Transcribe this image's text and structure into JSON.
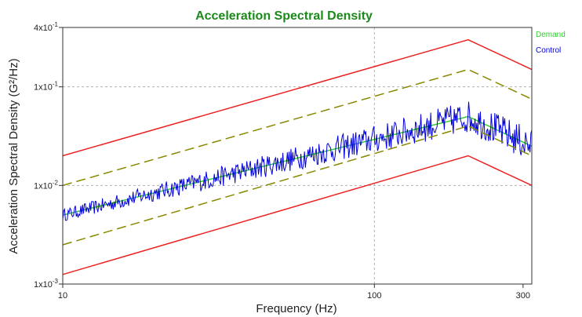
{
  "chart_data": {
    "type": "line",
    "title": "Acceleration Spectral Density",
    "xlabel": "Frequency (Hz)",
    "ylabel": "Acceleration Spectral Density (G²/Hz)",
    "xscale": "log",
    "yscale": "log",
    "xlim": [
      10,
      320
    ],
    "ylim": [
      0.001,
      0.4
    ],
    "grid": true,
    "legend_position": "top-right-outside",
    "x_ticks": [
      {
        "value": 10,
        "label": "10"
      },
      {
        "value": 100,
        "label": "100"
      },
      {
        "value": 300,
        "label": "300"
      }
    ],
    "y_ticks": [
      {
        "value": 0.001,
        "base": "1x10",
        "exp": "-3"
      },
      {
        "value": 0.01,
        "base": "1x10",
        "exp": "-2"
      },
      {
        "value": 0.1,
        "base": "1x10",
        "exp": "-1"
      },
      {
        "value": 0.4,
        "base": "4x10",
        "exp": "-1"
      }
    ],
    "series": [
      {
        "name": "Demand",
        "color": "#33cc33",
        "style": "solid",
        "x": [
          10,
          200,
          320
        ],
        "y": [
          0.005,
          0.05,
          0.025
        ]
      },
      {
        "name": "Control",
        "color": "#0000dd",
        "style": "noisy",
        "x": [
          10,
          200,
          320
        ],
        "y": [
          0.005,
          0.05,
          0.025
        ],
        "noise": 0.18
      },
      {
        "name": "",
        "color": "#ee2222",
        "style": "solid",
        "x": [
          10,
          200,
          320
        ],
        "y": [
          0.02,
          0.3,
          0.15
        ]
      },
      {
        "name": "",
        "color": "#888800",
        "style": "dashed",
        "x": [
          10,
          200,
          320
        ],
        "y": [
          0.01,
          0.15,
          0.075
        ]
      },
      {
        "name": "",
        "color": "#888800",
        "style": "dashed",
        "x": [
          10,
          200,
          320
        ],
        "y": [
          0.0025,
          0.04,
          0.02
        ]
      },
      {
        "name": "",
        "color": "#ee2222",
        "style": "solid",
        "x": [
          10,
          200,
          320
        ],
        "y": [
          0.00125,
          0.02,
          0.01
        ]
      }
    ]
  },
  "colors": {
    "title": "#1a8a1a",
    "demand_legend": "#33cc33",
    "control_legend": "#0000dd",
    "grid": "#b0b0b0"
  }
}
